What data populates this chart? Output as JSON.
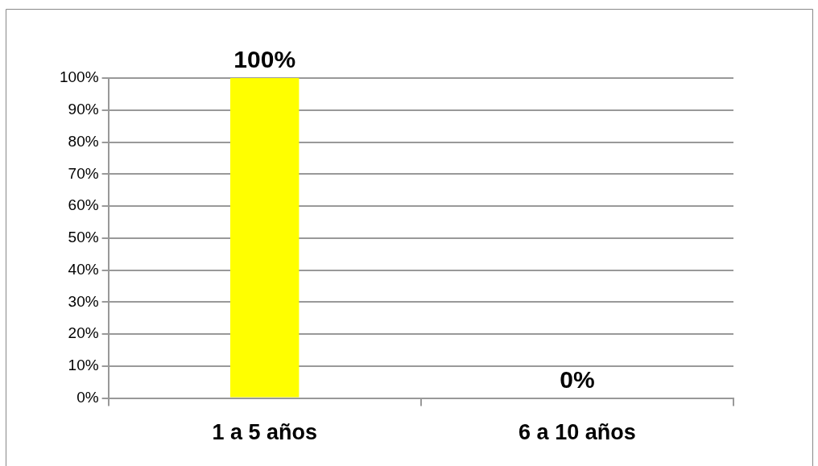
{
  "chart_data": {
    "type": "bar",
    "categories": [
      "1 a 5 años",
      "6 a 10 años"
    ],
    "values": [
      100,
      0
    ],
    "colors": [
      "#ffff00",
      "#c00000"
    ],
    "value_labels": [
      "100%",
      "0%"
    ],
    "ylim": [
      0,
      100
    ],
    "yticks": [
      {
        "value": 0,
        "label": "0%"
      },
      {
        "value": 10,
        "label": "10%"
      },
      {
        "value": 20,
        "label": "20%"
      },
      {
        "value": 30,
        "label": "30%"
      },
      {
        "value": 40,
        "label": "40%"
      },
      {
        "value": 50,
        "label": "50%"
      },
      {
        "value": 60,
        "label": "60%"
      },
      {
        "value": 70,
        "label": "70%"
      },
      {
        "value": 80,
        "label": "80%"
      },
      {
        "value": 90,
        "label": "90%"
      },
      {
        "value": 100,
        "label": "100%"
      }
    ],
    "grid": "y"
  }
}
